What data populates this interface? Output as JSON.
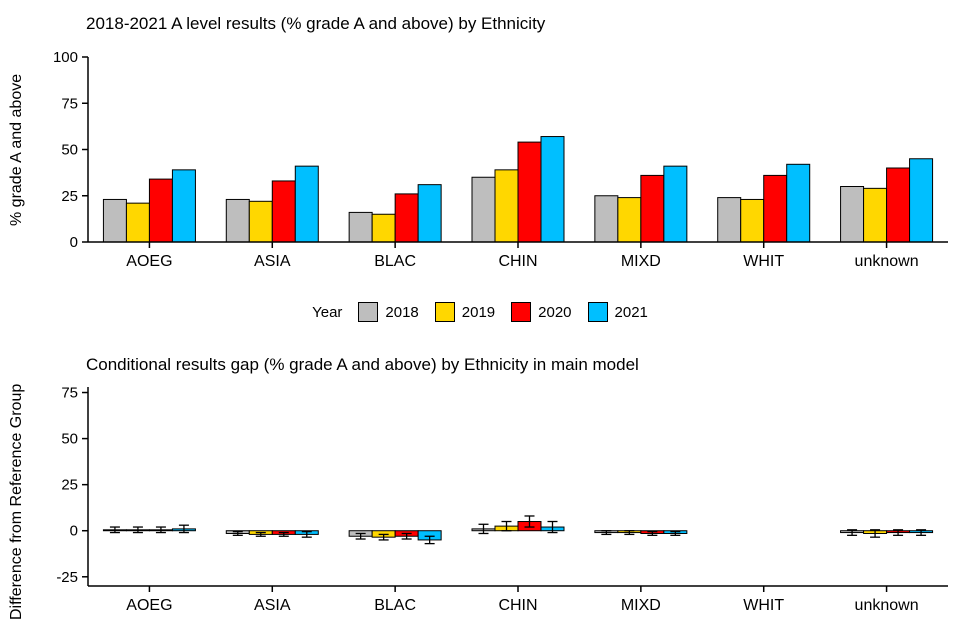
{
  "page": {
    "background": "#ffffff"
  },
  "legend": {
    "label": "Year",
    "items": [
      {
        "label": "2018",
        "color": "#BEBEBE"
      },
      {
        "label": "2019",
        "color": "#FFD700"
      },
      {
        "label": "2020",
        "color": "#FF0000"
      },
      {
        "label": "2021",
        "color": "#00BFFF"
      }
    ]
  },
  "chart_data": [
    {
      "type": "bar",
      "title": "2018-2021 A level results (% grade A and above) by Ethnicity",
      "ylabel": "% grade A and above",
      "xlabel": "",
      "categories": [
        "AOEG",
        "ASIA",
        "BLAC",
        "CHIN",
        "MIXD",
        "WHIT",
        "unknown"
      ],
      "series": [
        {
          "name": "2018",
          "color": "#BEBEBE",
          "values": [
            23,
            23,
            16,
            35,
            25,
            24,
            30
          ]
        },
        {
          "name": "2019",
          "color": "#FFD700",
          "values": [
            21,
            22,
            15,
            39,
            24,
            23,
            29
          ]
        },
        {
          "name": "2020",
          "color": "#FF0000",
          "values": [
            34,
            33,
            26,
            54,
            36,
            36,
            40
          ]
        },
        {
          "name": "2021",
          "color": "#00BFFF",
          "values": [
            39,
            41,
            31,
            57,
            41,
            42,
            45
          ]
        }
      ],
      "ylim": [
        0,
        100
      ],
      "yticks": [
        0,
        25,
        50,
        75,
        100
      ],
      "grid": false,
      "legend_position": "bottom",
      "bar_outline": "#000000"
    },
    {
      "type": "bar",
      "title": "Conditional results gap (% grade A and above) by Ethnicity in main model",
      "ylabel": "Difference from Reference Group",
      "xlabel": "",
      "categories": [
        "AOEG",
        "ASIA",
        "BLAC",
        "CHIN",
        "MIXD",
        "WHIT",
        "unknown"
      ],
      "reference_category": "WHIT",
      "series": [
        {
          "name": "2018",
          "color": "#BEBEBE",
          "values": [
            0.5,
            -1.5,
            -3,
            1,
            -1,
            null,
            -1
          ],
          "errors": [
            1.5,
            1,
            1.5,
            2.5,
            1,
            null,
            1.5
          ]
        },
        {
          "name": "2019",
          "color": "#FFD700",
          "values": [
            0.5,
            -2,
            -3.5,
            2.5,
            -1,
            null,
            -1.5
          ],
          "errors": [
            1.5,
            1,
            1.5,
            2.5,
            1,
            null,
            2
          ]
        },
        {
          "name": "2020",
          "color": "#FF0000",
          "values": [
            0.5,
            -2,
            -3,
            5,
            -1.5,
            null,
            -1
          ],
          "errors": [
            1.5,
            1,
            1.5,
            3,
            1,
            null,
            1.5
          ]
        },
        {
          "name": "2021",
          "color": "#00BFFF",
          "values": [
            1,
            -2,
            -5,
            2,
            -1.5,
            null,
            -1
          ],
          "errors": [
            2,
            1.5,
            2,
            3,
            1,
            null,
            1.5
          ]
        }
      ],
      "ylim": [
        -30,
        78
      ],
      "yticks": [
        -25,
        0,
        25,
        50,
        75
      ],
      "grid": false,
      "bar_outline": "#000000"
    }
  ]
}
